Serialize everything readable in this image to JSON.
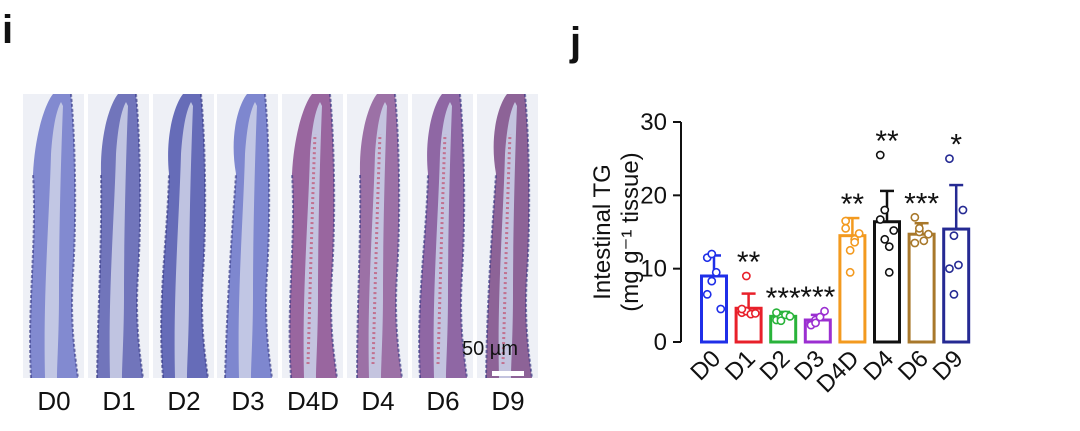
{
  "panel_i": {
    "letter": "i",
    "scale_bar": "50 µm",
    "stains": [
      {
        "label": "D0",
        "tint": "#6f78c9"
      },
      {
        "label": "D1",
        "tint": "#5a5fb0"
      },
      {
        "label": "D2",
        "tint": "#4d55ad"
      },
      {
        "label": "D3",
        "tint": "#6a74c8"
      },
      {
        "label": "D4D",
        "tint": "#8a4d8f"
      },
      {
        "label": "D4",
        "tint": "#8d5a98"
      },
      {
        "label": "D6",
        "tint": "#7e4f95"
      },
      {
        "label": "D9",
        "tint": "#7b4a86"
      }
    ]
  },
  "panel_j": {
    "letter": "j"
  },
  "chart_data": {
    "type": "bar",
    "ylabel_line1": "Intestinal TG",
    "ylabel_line2": "(mg g⁻¹ tissue)",
    "ylim": [
      0,
      30
    ],
    "yticks": [
      "0",
      "10",
      "20",
      "30"
    ],
    "categories": [
      "D0",
      "D1",
      "D2",
      "D3",
      "D4D",
      "D4",
      "D6",
      "D9"
    ],
    "values": [
      9.0,
      4.6,
      3.5,
      3.0,
      14.5,
      16.4,
      14.7,
      15.4
    ],
    "errors": [
      2.8,
      2.0,
      0.6,
      0.7,
      2.4,
      4.2,
      1.5,
      6.0
    ],
    "significance": [
      "",
      "**",
      "***",
      "***",
      "**",
      "**",
      "***",
      "*"
    ],
    "colors": [
      "#1f2fe8",
      "#e8202a",
      "#29b33a",
      "#9b2fd1",
      "#f39a1f",
      "#111111",
      "#a8782b",
      "#252a93"
    ],
    "points": [
      [
        6.5,
        8.3,
        9.5,
        4.5,
        11.5,
        12.0
      ],
      [
        4.0,
        4.2,
        3.8,
        3.9,
        4.5,
        9.0
      ],
      [
        3.0,
        3.3,
        3.7,
        3.5,
        4.0,
        2.9
      ],
      [
        2.5,
        3.0,
        3.4,
        4.2,
        2.3,
        2.6
      ],
      [
        16.5,
        12.5,
        14.0,
        14.8,
        15.5,
        9.5,
        13.6
      ],
      [
        25.5,
        18.0,
        13.0,
        15.2,
        16.7,
        14.0,
        9.5
      ],
      [
        17.0,
        15.0,
        13.8,
        14.7,
        13.5,
        15.5
      ],
      [
        25.0,
        14.5,
        10.5,
        18.0,
        10.0,
        6.5
      ]
    ]
  }
}
